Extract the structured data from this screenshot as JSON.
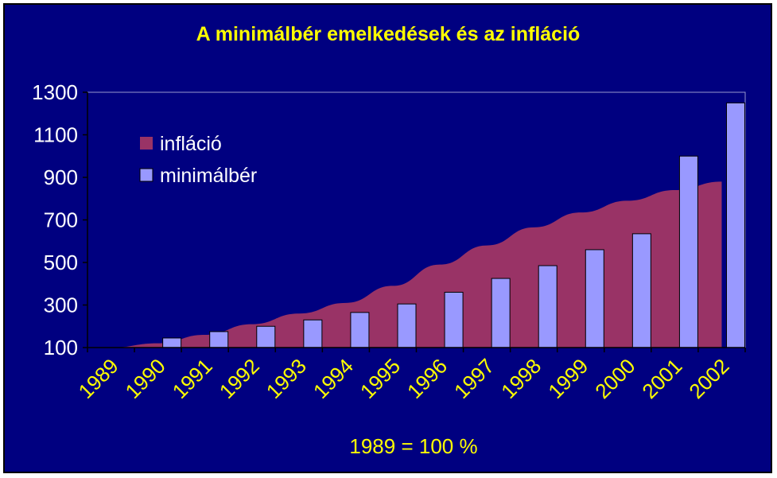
{
  "chart_data": {
    "type": "bar",
    "title": "A minimálbér emelkedések és az infláció",
    "xlabel": "",
    "ylabel": "",
    "footnote": "1989 = 100 %",
    "categories": [
      "1989",
      "1990",
      "1991",
      "1992",
      "1993",
      "1994",
      "1995",
      "1996",
      "1997",
      "1998",
      "1999",
      "2000",
      "2001",
      "2002"
    ],
    "yticks": [
      "100",
      "300",
      "500",
      "700",
      "900",
      "1100",
      "1300"
    ],
    "ylim": [
      100,
      1300
    ],
    "grid": false,
    "legend_position": "top-left",
    "series": [
      {
        "name": "infláció",
        "type": "area",
        "color": "#993366",
        "values": [
          100,
          120,
          160,
          210,
          260,
          310,
          390,
          490,
          580,
          665,
          735,
          790,
          840,
          880
        ]
      },
      {
        "name": "minimálbér",
        "type": "bar",
        "color": "#9999ff",
        "values": [
          100,
          145,
          175,
          200,
          230,
          265,
          305,
          360,
          425,
          485,
          560,
          635,
          1000,
          1250
        ]
      }
    ]
  }
}
